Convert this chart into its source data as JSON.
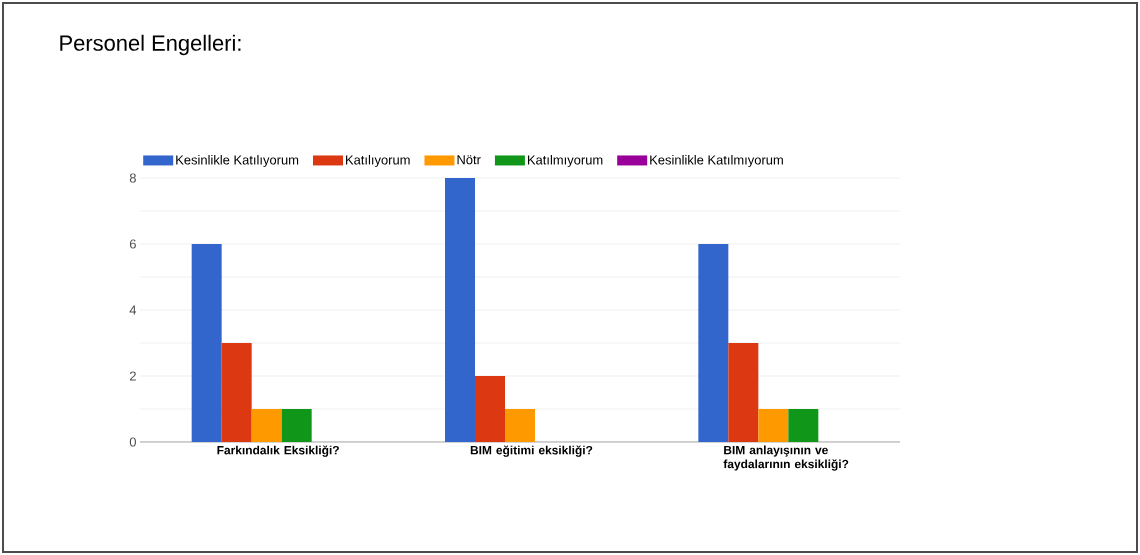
{
  "chart_data": {
    "type": "bar",
    "title": "Personel Engelleri:",
    "categories": [
      "Farkındalık Eksikliği?",
      "BIM eğitimi eksikliği?",
      "BIM anlayışının ve faydalarının eksikliği?"
    ],
    "series": [
      {
        "name": "Kesinlikle Katılıyorum",
        "color": "#3366cc",
        "values": [
          6,
          8,
          6
        ]
      },
      {
        "name": "Katılıyorum",
        "color": "#dc3912",
        "values": [
          3,
          2,
          3
        ]
      },
      {
        "name": "Nötr",
        "color": "#ff9900",
        "values": [
          1,
          1,
          1
        ]
      },
      {
        "name": "Katılmıyorum",
        "color": "#109618",
        "values": [
          1,
          0,
          1
        ]
      },
      {
        "name": "Kesinlikle Katılmıyorum",
        "color": "#990099",
        "values": [
          0,
          0,
          0
        ]
      }
    ],
    "ylim": [
      0,
      8
    ],
    "yticks": [
      0,
      {
        "value": 1,
        "label": null
      },
      2,
      {
        "value": 3,
        "label": null
      },
      4,
      {
        "value": 5,
        "label": null
      },
      6,
      {
        "value": 7,
        "label": null
      },
      8
    ],
    "grid": "y",
    "legend": "top"
  }
}
